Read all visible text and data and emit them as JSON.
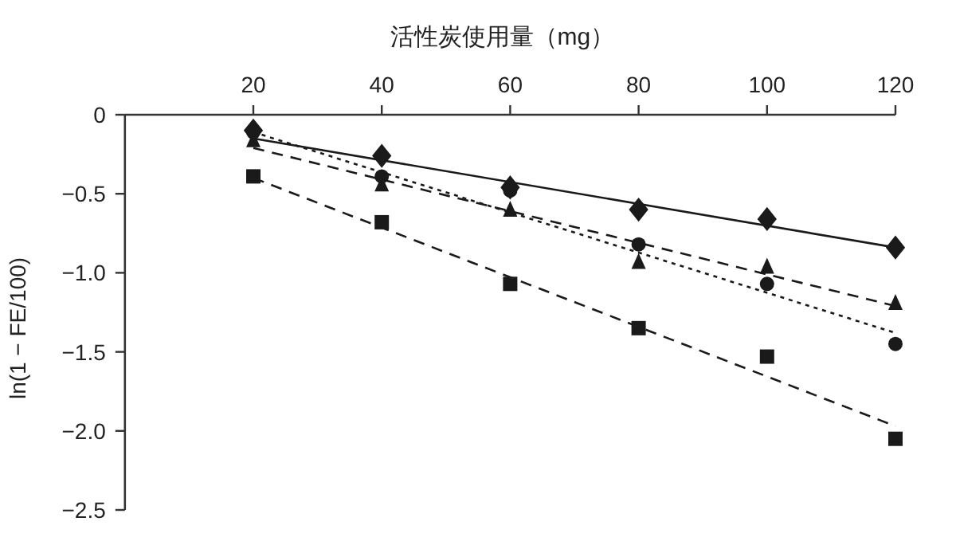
{
  "chart_data": {
    "type": "scatter",
    "xlabel": "活性炭使用量（mg）",
    "ylabel": "ln(1 − FE/100)",
    "xlim": [
      0,
      120
    ],
    "xticks": [
      20,
      40,
      60,
      80,
      100,
      120
    ],
    "ylim": [
      -2.5,
      0
    ],
    "yticks": [
      0,
      {
        "value": -0.5,
        "label": "−0.5"
      },
      {
        "value": -1.0,
        "label": "−1.0"
      },
      {
        "value": -1.5,
        "label": "−1.5"
      },
      {
        "value": -2.0,
        "label": "−2.0"
      },
      {
        "value": -2.5,
        "label": "−2.5"
      }
    ],
    "grid": false,
    "series": [
      {
        "marker": "diamond",
        "color": "#1a1a1a",
        "x": [
          20,
          40,
          60,
          80,
          100,
          120
        ],
        "values": [
          -0.1,
          -0.26,
          -0.46,
          -0.6,
          -0.66,
          -0.84
        ]
      },
      {
        "marker": "circle",
        "color": "#1a1a1a",
        "x": [
          20,
          40,
          60,
          80,
          100,
          120
        ],
        "values": [
          -0.11,
          -0.39,
          -0.48,
          -0.82,
          -1.07,
          -1.45
        ]
      },
      {
        "marker": "triangle",
        "color": "#1a1a1a",
        "x": [
          20,
          40,
          60,
          80,
          100,
          120
        ],
        "values": [
          -0.16,
          -0.44,
          -0.6,
          -0.93,
          -0.96,
          -1.19
        ]
      },
      {
        "marker": "square",
        "color": "#1a1a1a",
        "x": [
          20,
          40,
          60,
          80,
          100,
          120
        ],
        "values": [
          -0.39,
          -0.68,
          -1.07,
          -1.35,
          -1.53,
          -2.05
        ]
      },
      {
        "type": "line",
        "marker": "none",
        "line_style": "solid",
        "color": "#1a1a1a",
        "x": [
          20,
          120
        ],
        "values": [
          -0.15,
          -0.84
        ]
      },
      {
        "type": "line",
        "marker": "none",
        "line_style": "dotted",
        "color": "#1a1a1a",
        "x": [
          20,
          120
        ],
        "values": [
          -0.11,
          -1.38
        ]
      },
      {
        "type": "line",
        "marker": "none",
        "line_style": "dashed",
        "color": "#1a1a1a",
        "x": [
          20,
          120
        ],
        "values": [
          -0.21,
          -1.21
        ]
      },
      {
        "type": "line",
        "marker": "none",
        "line_style": "dashed",
        "color": "#1a1a1a",
        "x": [
          20,
          120
        ],
        "values": [
          -0.4,
          -1.97
        ]
      }
    ]
  }
}
